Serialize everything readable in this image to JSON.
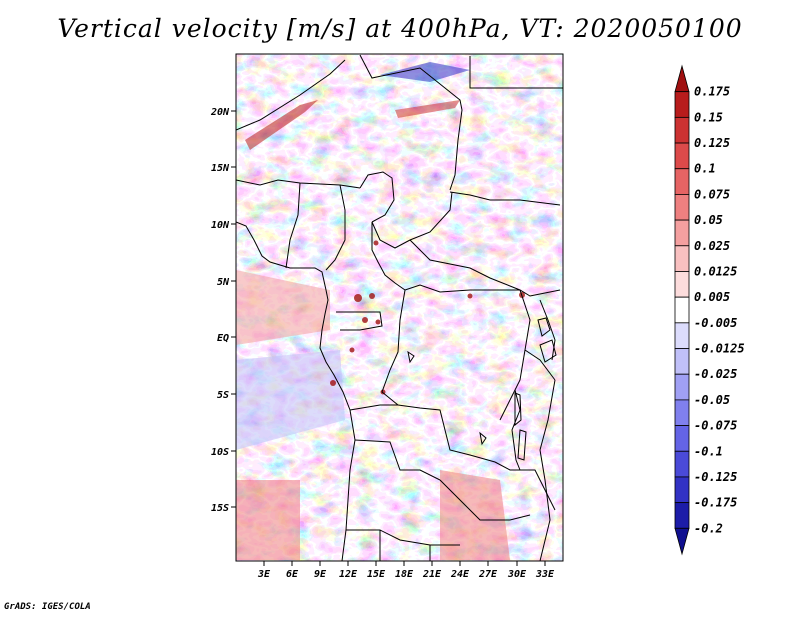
{
  "title": "Vertical velocity [m/s] at 400hPa, VT: 2020050100",
  "credit": "GrADS: IGES/COLA",
  "map": {
    "lat_labels": [
      "20N",
      "15N",
      "10N",
      "5N",
      "EQ",
      "5S",
      "10S",
      "15S"
    ],
    "lon_labels": [
      "3E",
      "6E",
      "9E",
      "12E",
      "15E",
      "18E",
      "21E",
      "24E",
      "27E",
      "30E",
      "33E"
    ],
    "lat_range": [
      -20,
      25
    ],
    "lon_range": [
      0,
      35
    ],
    "field": "vertical velocity",
    "level": "400hPa"
  },
  "colorbar": {
    "levels": [
      "0.175",
      "0.15",
      "0.125",
      "0.1",
      "0.075",
      "0.05",
      "0.025",
      "0.0125",
      "0.005",
      "-0.005",
      "-0.0125",
      "-0.025",
      "-0.05",
      "-0.075",
      "-0.1",
      "-0.125",
      "-0.175",
      "-0.2"
    ],
    "colors": [
      "#a01010",
      "#b81c1c",
      "#cc3232",
      "#dc4a4a",
      "#e66464",
      "#ee8080",
      "#f4a0a0",
      "#f8c0c0",
      "#fcdcdc",
      "#ffffff",
      "#dcdcfc",
      "#c0c0f8",
      "#a0a0f4",
      "#8080ee",
      "#6464e6",
      "#4a4ad8",
      "#3232c4",
      "#1c1ca8",
      "#101090"
    ]
  }
}
